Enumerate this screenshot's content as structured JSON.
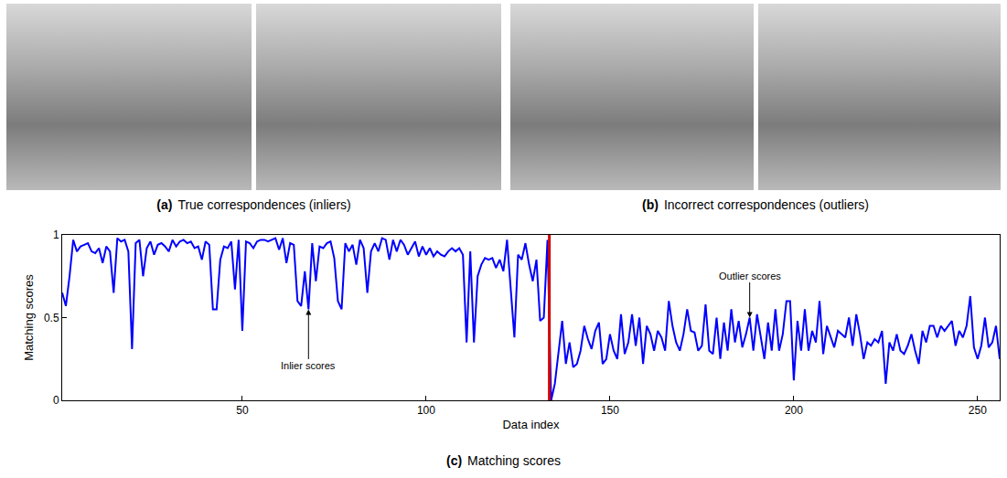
{
  "panels": [
    {
      "label": "(a)",
      "caption": "True correspondences (inliers)"
    },
    {
      "label": "(b)",
      "caption": "Incorrect correspondences (outliers)"
    }
  ],
  "chart_data": {
    "label": "(c)",
    "caption": "Matching scores",
    "type": "line",
    "y_label": "Matching scores",
    "x_label": "Data index",
    "xlim": [
      1,
      256
    ],
    "xticks": [
      50,
      100,
      150,
      200,
      250
    ],
    "ylim": [
      0,
      1
    ],
    "yticks": [
      0,
      0.5,
      1
    ],
    "grid": false,
    "separator_x": 133.5,
    "separator_color": "#d40000",
    "annotations": [
      {
        "text": "Inlier scores",
        "x": 68,
        "y": 0.55
      },
      {
        "text": "Outlier scores",
        "x": 188,
        "y": 0.5
      }
    ],
    "series": [
      {
        "name": "Matching scores",
        "color": "#0000ff",
        "x": [
          1,
          2,
          3,
          4,
          5,
          6,
          7,
          8,
          9,
          10,
          11,
          12,
          13,
          14,
          15,
          16,
          17,
          18,
          19,
          20,
          21,
          22,
          23,
          24,
          25,
          26,
          27,
          28,
          29,
          30,
          31,
          32,
          33,
          34,
          35,
          36,
          37,
          38,
          39,
          40,
          41,
          42,
          43,
          44,
          45,
          46,
          47,
          48,
          49,
          50,
          51,
          52,
          53,
          54,
          55,
          56,
          57,
          58,
          59,
          60,
          61,
          62,
          63,
          64,
          65,
          66,
          67,
          68,
          69,
          70,
          71,
          72,
          73,
          74,
          75,
          76,
          77,
          78,
          79,
          80,
          81,
          82,
          83,
          84,
          85,
          86,
          87,
          88,
          89,
          90,
          91,
          92,
          93,
          94,
          95,
          96,
          97,
          98,
          99,
          100,
          101,
          102,
          103,
          104,
          105,
          106,
          107,
          108,
          109,
          110,
          111,
          112,
          113,
          114,
          115,
          116,
          117,
          118,
          119,
          120,
          121,
          122,
          123,
          124,
          125,
          126,
          127,
          128,
          129,
          130,
          131,
          132,
          133,
          134,
          135,
          136,
          137,
          138,
          139,
          140,
          141,
          142,
          143,
          144,
          145,
          146,
          147,
          148,
          149,
          150,
          151,
          152,
          153,
          154,
          155,
          156,
          157,
          158,
          159,
          160,
          161,
          162,
          163,
          164,
          165,
          166,
          167,
          168,
          169,
          170,
          171,
          172,
          173,
          174,
          175,
          176,
          177,
          178,
          179,
          180,
          181,
          182,
          183,
          184,
          185,
          186,
          187,
          188,
          189,
          190,
          191,
          192,
          193,
          194,
          195,
          196,
          197,
          198,
          199,
          200,
          201,
          202,
          203,
          204,
          205,
          206,
          207,
          208,
          209,
          210,
          211,
          212,
          213,
          214,
          215,
          216,
          217,
          218,
          219,
          220,
          221,
          222,
          223,
          224,
          225,
          226,
          227,
          228,
          229,
          230,
          231,
          232,
          233,
          234,
          235,
          236,
          237,
          238,
          239,
          240,
          241,
          242,
          243,
          244,
          245,
          246,
          247,
          248,
          249,
          250,
          251,
          252,
          253,
          254,
          255,
          256
        ],
        "values": [
          0.65,
          0.57,
          0.75,
          0.97,
          0.9,
          0.93,
          0.94,
          0.95,
          0.9,
          0.89,
          0.92,
          0.83,
          0.93,
          0.9,
          0.65,
          0.98,
          0.96,
          0.97,
          0.9,
          0.31,
          0.95,
          0.97,
          0.75,
          0.92,
          0.96,
          0.88,
          0.94,
          0.95,
          0.93,
          0.9,
          0.97,
          0.93,
          0.96,
          0.97,
          0.95,
          0.96,
          0.92,
          0.93,
          0.85,
          0.96,
          0.94,
          0.55,
          0.55,
          0.85,
          0.93,
          0.92,
          0.96,
          0.67,
          0.97,
          0.42,
          0.96,
          0.95,
          0.92,
          0.96,
          0.97,
          0.97,
          0.96,
          0.97,
          0.98,
          0.91,
          0.98,
          0.83,
          0.95,
          0.94,
          0.6,
          0.57,
          0.78,
          0.55,
          0.95,
          0.72,
          0.93,
          0.92,
          0.95,
          0.96,
          0.86,
          0.6,
          0.55,
          0.95,
          0.9,
          0.94,
          0.82,
          0.97,
          0.92,
          0.65,
          0.9,
          0.95,
          0.9,
          0.98,
          0.97,
          0.85,
          0.97,
          0.9,
          0.97,
          0.94,
          0.88,
          0.92,
          0.96,
          0.87,
          0.93,
          0.88,
          0.92,
          0.87,
          0.9,
          0.88,
          0.87,
          0.9,
          0.92,
          0.9,
          0.92,
          0.88,
          0.35,
          0.9,
          0.35,
          0.75,
          0.82,
          0.86,
          0.85,
          0.86,
          0.8,
          0.85,
          0.78,
          0.97,
          0.7,
          0.38,
          0.88,
          0.85,
          0.95,
          0.82,
          0.72,
          0.85,
          0.48,
          0.5,
          0.97,
          0.0,
          0.1,
          0.3,
          0.48,
          0.22,
          0.35,
          0.2,
          0.22,
          0.3,
          0.45,
          0.37,
          0.31,
          0.42,
          0.47,
          0.22,
          0.25,
          0.4,
          0.3,
          0.25,
          0.52,
          0.28,
          0.35,
          0.52,
          0.33,
          0.5,
          0.22,
          0.45,
          0.4,
          0.3,
          0.42,
          0.38,
          0.3,
          0.6,
          0.45,
          0.35,
          0.3,
          0.4,
          0.55,
          0.42,
          0.41,
          0.3,
          0.33,
          0.58,
          0.3,
          0.28,
          0.5,
          0.25,
          0.47,
          0.3,
          0.55,
          0.35,
          0.48,
          0.32,
          0.4,
          0.5,
          0.3,
          0.52,
          0.38,
          0.25,
          0.47,
          0.3,
          0.55,
          0.3,
          0.4,
          0.6,
          0.6,
          0.12,
          0.48,
          0.3,
          0.55,
          0.3,
          0.42,
          0.35,
          0.6,
          0.28,
          0.45,
          0.38,
          0.32,
          0.42,
          0.4,
          0.38,
          0.5,
          0.33,
          0.52,
          0.4,
          0.25,
          0.35,
          0.33,
          0.37,
          0.35,
          0.42,
          0.1,
          0.35,
          0.3,
          0.4,
          0.3,
          0.28,
          0.33,
          0.4,
          0.3,
          0.22,
          0.42,
          0.35,
          0.45,
          0.45,
          0.38,
          0.45,
          0.42,
          0.45,
          0.48,
          0.33,
          0.42,
          0.38,
          0.45,
          0.63,
          0.32,
          0.25,
          0.33,
          0.5,
          0.32,
          0.35,
          0.45,
          0.25
        ]
      }
    ]
  }
}
